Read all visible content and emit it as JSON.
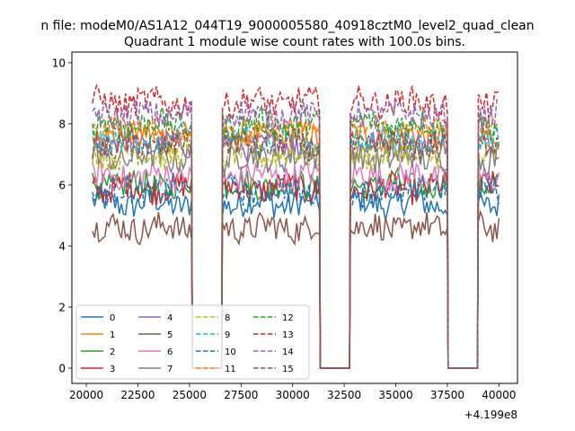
{
  "figure": {
    "suptitle": "n file: modeM0/AS1A12_044T19_9000005580_40918cztM0_level2_quad_clean",
    "x_offset_label": "+4.199e8"
  },
  "chart_data": {
    "type": "line",
    "title": "Quadrant 1 module wise count rates with 100.0s bins.",
    "xlabel": "",
    "ylabel": "",
    "x_offset": 419900000,
    "xlim": [
      19300,
      40900
    ],
    "ylim": [
      -0.5,
      10.35
    ],
    "xticks": [
      20000,
      22500,
      25000,
      27500,
      30000,
      32500,
      35000,
      37500,
      40000
    ],
    "yticks": [
      0,
      2,
      4,
      6,
      8,
      10
    ],
    "grid": false,
    "legend": {
      "location": "lower-left",
      "columns": 4
    },
    "segments": [
      {
        "start": 20300,
        "end": 25100
      },
      {
        "start": 26600,
        "end": 31300
      },
      {
        "start": 32800,
        "end": 37500
      },
      {
        "start": 39000,
        "end": 40000
      }
    ],
    "gaps": [
      {
        "from": 25100,
        "to": 26600,
        "value": 0
      },
      {
        "from": 31300,
        "to": 32800,
        "value": 0
      },
      {
        "from": 37500,
        "to": 39000,
        "value": 0
      }
    ],
    "series": [
      {
        "name": "0",
        "color": "#1f77b4",
        "dash": "solid",
        "level": 5.4
      },
      {
        "name": "1",
        "color": "#ff7f0e",
        "dash": "solid",
        "level": 7.6
      },
      {
        "name": "2",
        "color": "#2ca02c",
        "dash": "solid",
        "level": 6.0
      },
      {
        "name": "3",
        "color": "#d62728",
        "dash": "solid",
        "level": 5.9
      },
      {
        "name": "4",
        "color": "#9467bd",
        "dash": "solid",
        "level": 7.3
      },
      {
        "name": "5",
        "color": "#8c564b",
        "dash": "solid",
        "level": 4.6
      },
      {
        "name": "6",
        "color": "#e377c2",
        "dash": "solid",
        "level": 6.3
      },
      {
        "name": "7",
        "color": "#7f7f7f",
        "dash": "solid",
        "level": 6.9
      },
      {
        "name": "8",
        "color": "#bcbd22",
        "dash": "dashed",
        "level": 7.0
      },
      {
        "name": "9",
        "color": "#17becf",
        "dash": "dashed",
        "level": 7.5
      },
      {
        "name": "10",
        "color": "#1f77b4",
        "dash": "dashed",
        "level": 5.8
      },
      {
        "name": "11",
        "color": "#ff7f0e",
        "dash": "dashed",
        "level": 7.8
      },
      {
        "name": "12",
        "color": "#2ca02c",
        "dash": "dashed",
        "level": 8.0
      },
      {
        "name": "13",
        "color": "#d62728",
        "dash": "dashed",
        "level": 8.7
      },
      {
        "name": "14",
        "color": "#9467bd",
        "dash": "dashed",
        "level": 8.3
      },
      {
        "name": "15",
        "color": "#8c564b",
        "dash": "dashed",
        "level": 7.3
      }
    ]
  }
}
